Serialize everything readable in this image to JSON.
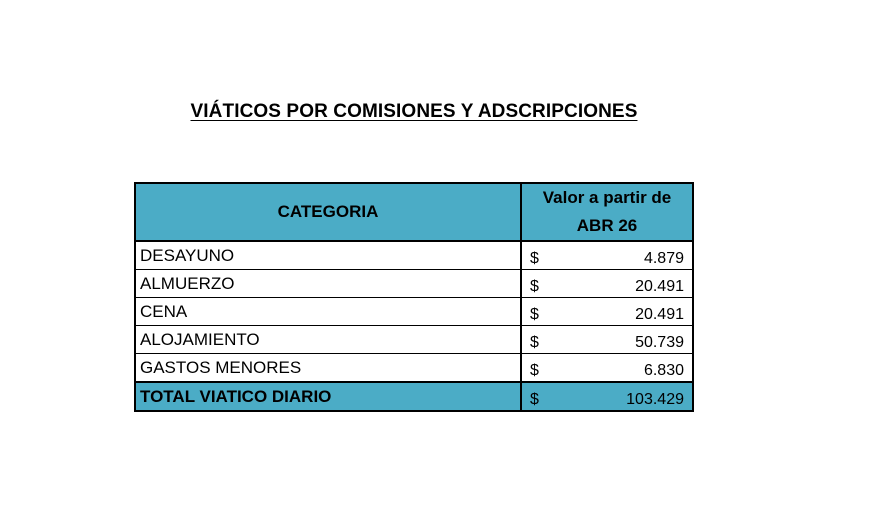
{
  "title": "VIÁTICOS POR COMISIONES Y ADSCRIPCIONES",
  "table": {
    "header": {
      "category": "CATEGORIA",
      "value_line1": "Valor a partir de",
      "value_line2": "ABR  26"
    },
    "rows": [
      {
        "category": "DESAYUNO",
        "currency": "$",
        "amount": "4.879"
      },
      {
        "category": "ALMUERZO",
        "currency": "$",
        "amount": "20.491"
      },
      {
        "category": "CENA",
        "currency": "$",
        "amount": "20.491"
      },
      {
        "category": "ALOJAMIENTO",
        "currency": "$",
        "amount": "50.739"
      },
      {
        "category": "GASTOS MENORES",
        "currency": "$",
        "amount": "6.830"
      }
    ],
    "total": {
      "category": "TOTAL VIATICO DIARIO",
      "currency": "$",
      "amount": "103.429"
    }
  },
  "colors": {
    "header_fill": "#4bacc6",
    "border": "#000000"
  }
}
